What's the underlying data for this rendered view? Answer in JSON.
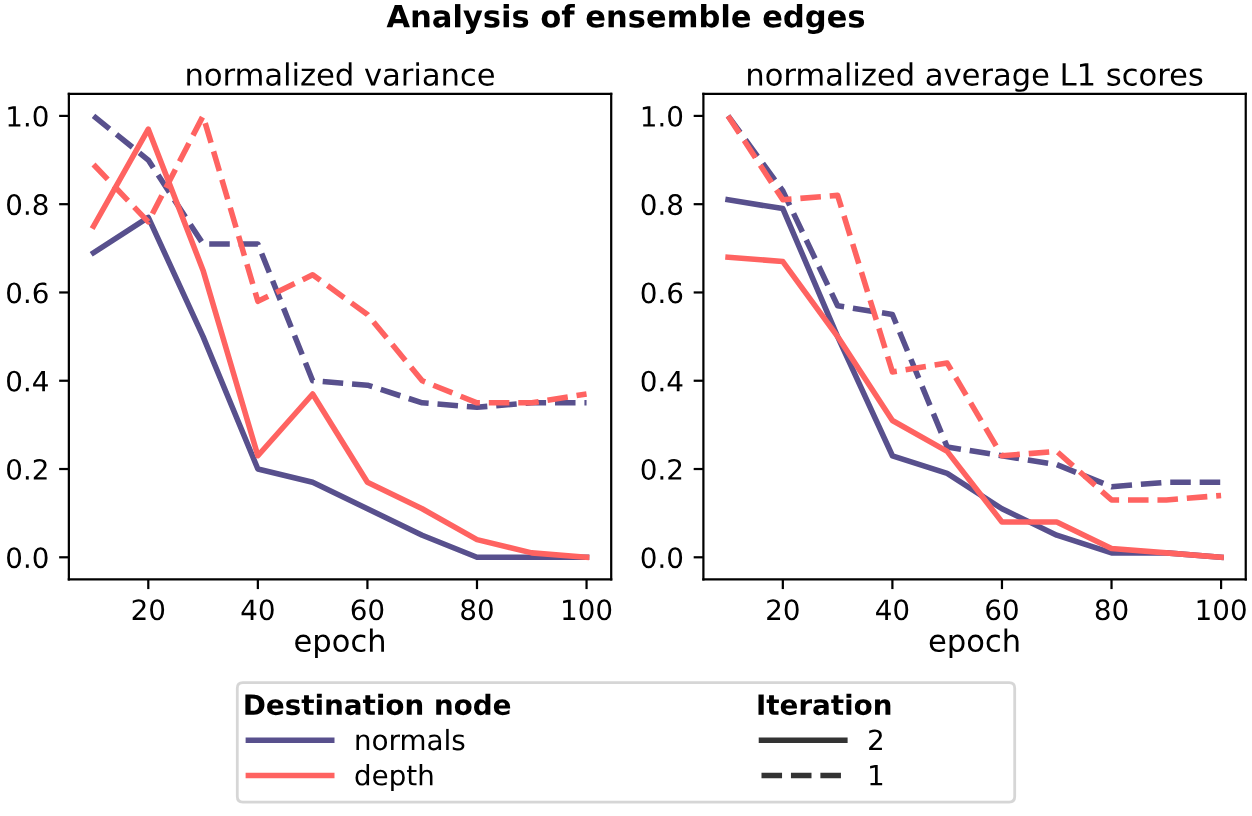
{
  "chart_data": [
    {
      "type": "line",
      "title": "normalized variance",
      "xlabel": "epoch",
      "annotations": [
        "Analysis of ensemble edges"
      ],
      "legend": "bottom",
      "legend_title": "Destination node",
      "x": [
        10,
        20,
        30,
        40,
        50,
        60,
        70,
        80,
        90,
        100
      ],
      "xlim": [
        5.5,
        104.5
      ],
      "xticks": [
        20,
        40,
        60,
        80,
        100
      ],
      "ylim": [
        -0.05,
        1.05
      ],
      "yticks": [
        {
          "value": 0,
          "label": "0.0"
        },
        {
          "value": 0.2,
          "label": "0.2"
        },
        {
          "value": 0.4,
          "label": "0.4"
        },
        {
          "value": 0.6,
          "label": "0.6"
        },
        {
          "value": 0.8,
          "label": "0.8"
        },
        {
          "value": 1,
          "label": "1.0"
        }
      ],
      "series": [
        {
          "name": "normals",
          "line_style": "solid",
          "color": "#58508d",
          "values": [
            0.69,
            0.77,
            0.5,
            0.2,
            0.17,
            0.11,
            0.05,
            0.0,
            0.0,
            0.0
          ]
        },
        {
          "line_style": "dashed",
          "color": "#58508d",
          "values": [
            1.0,
            0.9,
            0.71,
            0.71,
            0.4,
            0.39,
            0.35,
            0.34,
            0.35,
            0.35
          ]
        },
        {
          "name": "depth",
          "line_style": "solid",
          "color": "#ff6361",
          "values": [
            0.75,
            0.97,
            0.65,
            0.23,
            0.37,
            0.17,
            0.11,
            0.04,
            0.01,
            0.0
          ]
        },
        {
          "line_style": "dashed",
          "color": "#ff6361",
          "values": [
            0.89,
            0.76,
            1.0,
            0.58,
            0.64,
            0.55,
            0.4,
            0.35,
            0.35,
            0.37
          ]
        }
      ]
    },
    {
      "type": "line",
      "title": "normalized average L1 scores",
      "xlabel": "epoch",
      "x": [
        10,
        20,
        30,
        40,
        50,
        60,
        70,
        80,
        90,
        100
      ],
      "xlim": [
        5.5,
        104.5
      ],
      "xticks": [
        20,
        40,
        60,
        80,
        100
      ],
      "ylim": [
        -0.05,
        1.05
      ],
      "yticks": [
        {
          "value": 0,
          "label": "0.0"
        },
        {
          "value": 0.2,
          "label": "0.2"
        },
        {
          "value": 0.4,
          "label": "0.4"
        },
        {
          "value": 0.6,
          "label": "0.6"
        },
        {
          "value": 0.8,
          "label": "0.8"
        },
        {
          "value": 1,
          "label": "1.0"
        }
      ],
      "series": [
        {
          "line_style": "solid",
          "color": "#58508d",
          "values": [
            0.81,
            0.79,
            0.5,
            0.23,
            0.19,
            0.11,
            0.05,
            0.01,
            0.01,
            0.0
          ]
        },
        {
          "line_style": "dashed",
          "color": "#58508d",
          "values": [
            1.0,
            0.83,
            0.57,
            0.55,
            0.25,
            0.23,
            0.21,
            0.16,
            0.17,
            0.17
          ]
        },
        {
          "line_style": "solid",
          "color": "#ff6361",
          "values": [
            0.68,
            0.67,
            0.5,
            0.31,
            0.24,
            0.08,
            0.08,
            0.02,
            0.01,
            0.0
          ]
        },
        {
          "line_style": "dashed",
          "color": "#ff6361",
          "values": [
            1.0,
            0.81,
            0.82,
            0.42,
            0.44,
            0.23,
            0.24,
            0.13,
            0.13,
            0.14
          ]
        }
      ]
    },
    {
      "type": "other",
      "legend_title": "Iteration",
      "categories": [
        "2",
        "1"
      ]
    }
  ]
}
